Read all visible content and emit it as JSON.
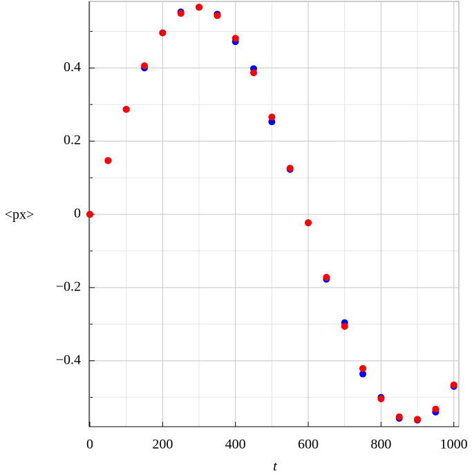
{
  "chart_data": {
    "type": "scatter",
    "x_label": "t",
    "y_label": "<px>",
    "x": [
      0,
      50,
      100,
      150,
      200,
      250,
      300,
      350,
      400,
      450,
      500,
      550,
      600,
      650,
      700,
      750,
      800,
      850,
      900,
      950,
      1000
    ],
    "series": [
      {
        "color": "#0000ff",
        "values": [
          0,
          0.147,
          0.287,
          0.4,
          0.496,
          0.553,
          0.566,
          0.547,
          0.472,
          0.398,
          0.253,
          0.123,
          -0.023,
          -0.177,
          -0.296,
          -0.436,
          -0.5,
          -0.557,
          -0.562,
          -0.54,
          -0.47
        ]
      },
      {
        "color": "#ff0000",
        "values": [
          0,
          0.147,
          0.287,
          0.406,
          0.496,
          0.549,
          0.566,
          0.543,
          0.481,
          0.387,
          0.266,
          0.126,
          -0.023,
          -0.172,
          -0.306,
          -0.421,
          -0.504,
          -0.553,
          -0.56,
          -0.532,
          -0.466
        ]
      }
    ],
    "xlim": [
      0,
      1012
    ],
    "ylim": [
      -0.58,
      0.58
    ],
    "xticks": [
      0,
      200,
      400,
      600,
      800,
      1000
    ],
    "xticks_minor": [
      100,
      300,
      500,
      700,
      900
    ],
    "yticks": [
      {
        "value": -0.4,
        "label": "−0.4"
      },
      {
        "value": -0.2,
        "label": "−0.2"
      },
      0,
      0.2,
      0.4
    ],
    "yticks_minor": [
      -0.5,
      -0.3,
      -0.1,
      0.1,
      0.3,
      0.5
    ],
    "grid": true
  }
}
